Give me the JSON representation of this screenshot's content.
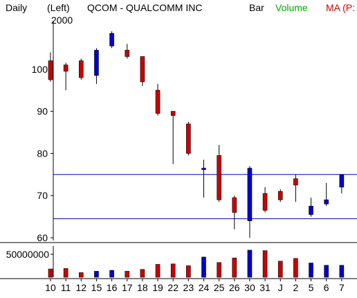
{
  "header": {
    "period": "Daily",
    "scale_side": "(Left)",
    "year": "2000",
    "symbol_title": "QCOM - QUALCOMM INC",
    "chart_style": "Bar",
    "volume_label": "Volume",
    "ma_label": "MA (P:"
  },
  "colors": {
    "up": "#0000cc",
    "down": "#cc0000",
    "volume_label": "#00aa00",
    "ma_label": "#cc0000",
    "reference_line": "#0000bb",
    "axis": "#000000"
  },
  "chart_data": [
    {
      "type": "candlestick",
      "grid": false,
      "ylim": [
        59,
        110
      ],
      "y_ticks": [
        "100",
        "90",
        "80",
        "70",
        "60"
      ],
      "y_tick_values": [
        100,
        90,
        80,
        70,
        60
      ],
      "horizontal_lines": [
        75,
        64.5
      ],
      "categories": [
        "10",
        "11",
        "12",
        "15",
        "16",
        "17",
        "18",
        "19",
        "22",
        "23",
        "24",
        "25",
        "26",
        "30",
        "31",
        "J",
        "2",
        "5",
        "6",
        "7"
      ],
      "x_tick_labels": [
        "10",
        "11",
        "12",
        "15",
        "16",
        "17",
        "18",
        "19",
        "22",
        "23",
        "24",
        "25",
        "26",
        "30",
        "31",
        "J",
        "2",
        "5",
        "6",
        "7"
      ],
      "ohlc": [
        {
          "x": "10",
          "open": 102,
          "high": 104,
          "low": 97,
          "close": 97.5
        },
        {
          "x": "11",
          "open": 101,
          "high": 101.5,
          "low": 95,
          "close": 99.5
        },
        {
          "x": "12",
          "open": 102,
          "high": 102.5,
          "low": 97.5,
          "close": 98
        },
        {
          "x": "15",
          "open": 98.5,
          "high": 105,
          "low": 96.5,
          "close": 104.5
        },
        {
          "x": "16",
          "open": 105.5,
          "high": 109,
          "low": 105,
          "close": 108.5
        },
        {
          "x": "17",
          "open": 104.5,
          "high": 106,
          "low": 102.5,
          "close": 103
        },
        {
          "x": "18",
          "open": 103,
          "high": 103,
          "low": 96,
          "close": 97
        },
        {
          "x": "19",
          "open": 95,
          "high": 96.5,
          "low": 89,
          "close": 89.5
        },
        {
          "x": "22",
          "open": 90,
          "high": 90,
          "low": 77.5,
          "close": 89
        },
        {
          "x": "23",
          "open": 87,
          "high": 87.5,
          "low": 79.5,
          "close": 80
        },
        {
          "x": "24",
          "open": 76.5,
          "high": 78.5,
          "low": 69.5,
          "close": 76.5
        },
        {
          "x": "25",
          "open": 79.5,
          "high": 82,
          "low": 68.5,
          "close": 69
        },
        {
          "x": "26",
          "open": 69.5,
          "high": 70,
          "low": 62,
          "close": 66
        },
        {
          "x": "30",
          "open": 64,
          "high": 77,
          "low": 60,
          "close": 76.5
        },
        {
          "x": "31",
          "open": 70.5,
          "high": 72,
          "low": 66,
          "close": 66.5
        },
        {
          "x": "J",
          "open": 71,
          "high": 71.5,
          "low": 68.5,
          "close": 69
        },
        {
          "x": "2",
          "open": 74,
          "high": 75,
          "low": 68.5,
          "close": 72.5
        },
        {
          "x": "5",
          "open": 65.5,
          "high": 69.5,
          "low": 65,
          "close": 67.5
        },
        {
          "x": "6",
          "open": 68,
          "high": 73,
          "low": 67.5,
          "close": 69
        },
        {
          "x": "7",
          "open": 72,
          "high": 75,
          "low": 70.5,
          "close": 75
        }
      ]
    },
    {
      "type": "bar",
      "series_label": "Volume",
      "ylim": [
        0,
        65000000
      ],
      "y_ticks": [
        "50000000"
      ],
      "y_tick_values": [
        50000000
      ],
      "categories": [
        "10",
        "11",
        "12",
        "15",
        "16",
        "17",
        "18",
        "19",
        "22",
        "23",
        "24",
        "25",
        "26",
        "30",
        "31",
        "J",
        "2",
        "5",
        "6",
        "7"
      ],
      "values": [
        18000000,
        19000000,
        10000000,
        13000000,
        15000000,
        13000000,
        17000000,
        28000000,
        29000000,
        25000000,
        44000000,
        32000000,
        42000000,
        59000000,
        58000000,
        35000000,
        41000000,
        31000000,
        26000000,
        26000000
      ],
      "direction": [
        "down",
        "down",
        "down",
        "up",
        "up",
        "down",
        "down",
        "down",
        "down",
        "down",
        "up",
        "down",
        "down",
        "up",
        "down",
        "down",
        "down",
        "up",
        "up",
        "up"
      ]
    }
  ]
}
